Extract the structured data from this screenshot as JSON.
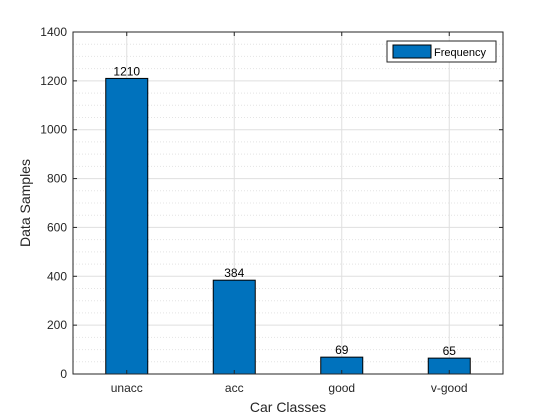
{
  "chart_data": {
    "type": "bar",
    "title": "",
    "xlabel": "Car Classes",
    "ylabel": "Data Samples",
    "categories": [
      "unacc",
      "acc",
      "good",
      "v-good"
    ],
    "series": [
      {
        "name": "Frequency",
        "values": [
          1210,
          384,
          69,
          65
        ],
        "color": "#0072BD"
      }
    ],
    "data_labels": [
      "1210",
      "384",
      "69",
      "65"
    ],
    "ylim": [
      0,
      1400
    ],
    "yticks": [
      0,
      200,
      400,
      600,
      800,
      1000,
      1200,
      1400
    ],
    "grid": true,
    "minor_grid": true,
    "legend_position": "top-right"
  }
}
